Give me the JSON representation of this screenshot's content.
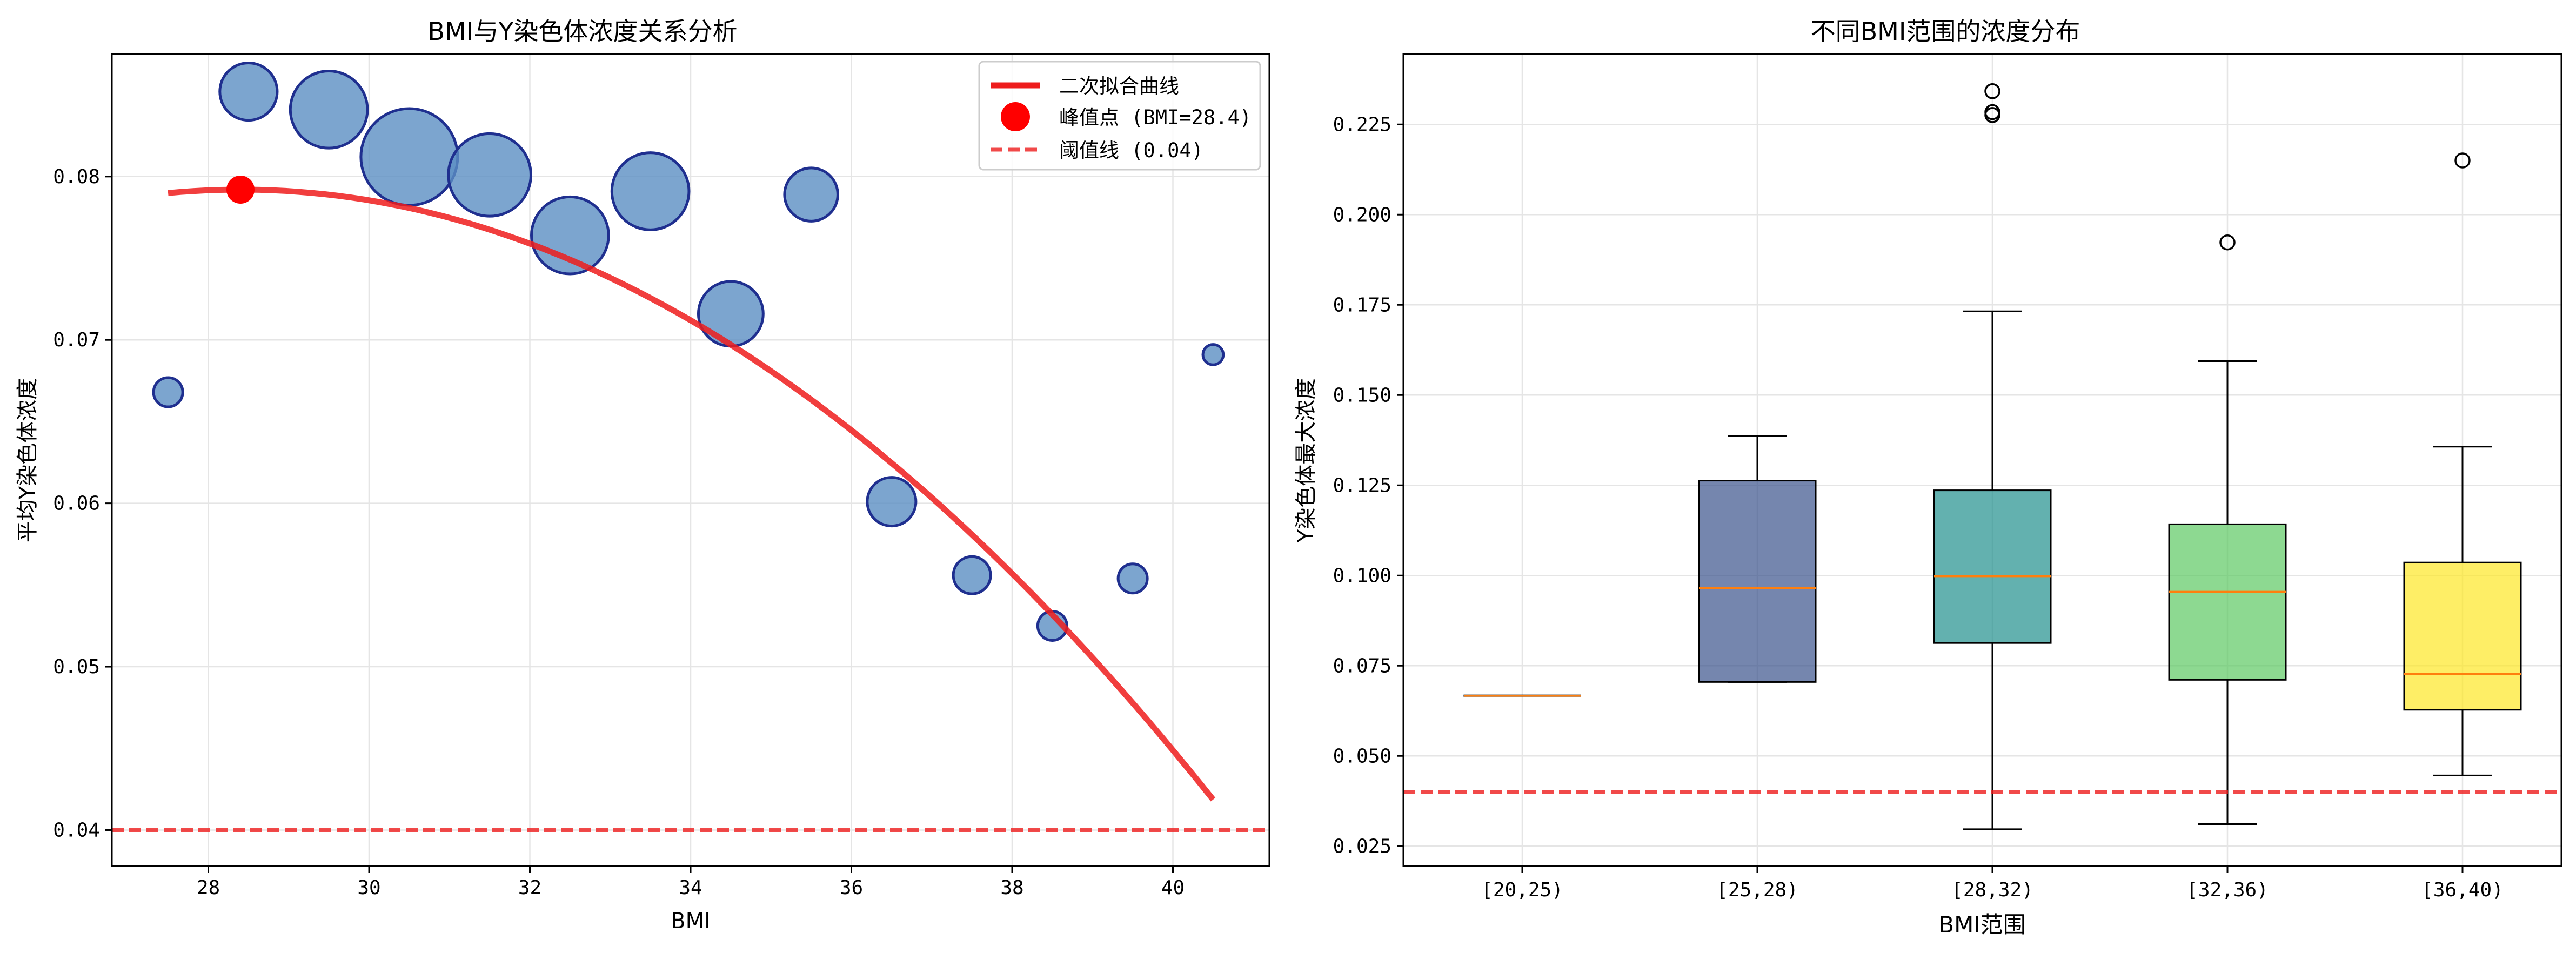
{
  "chart_data": [
    {
      "type": "scatter",
      "title": "BMI与Y染色体浓度关系分析",
      "xlabel": "BMI",
      "ylabel": "平均Y染色体浓度",
      "xlim": [
        26.8,
        41.2
      ],
      "ylim": [
        0.0378,
        0.0875
      ],
      "xticks": [
        28,
        30,
        32,
        34,
        36,
        38,
        40
      ],
      "yticks": [
        0.04,
        0.05,
        0.06,
        0.07,
        0.08
      ],
      "xtick_labels": [
        "28",
        "30",
        "32",
        "34",
        "36",
        "38",
        "40"
      ],
      "ytick_labels": [
        "0.04",
        "0.05",
        "0.06",
        "0.07",
        "0.08"
      ],
      "grid": true,
      "legend_position": "upper-right",
      "points": [
        {
          "x": 27.5,
          "y": 0.0668,
          "size": 1
        },
        {
          "x": 28.5,
          "y": 0.0852,
          "size": 6
        },
        {
          "x": 29.5,
          "y": 0.0841,
          "size": 12
        },
        {
          "x": 30.5,
          "y": 0.0812,
          "size": 20
        },
        {
          "x": 31.5,
          "y": 0.0801,
          "size": 14
        },
        {
          "x": 32.5,
          "y": 0.0764,
          "size": 12
        },
        {
          "x": 33.5,
          "y": 0.0791,
          "size": 12
        },
        {
          "x": 34.5,
          "y": 0.0716,
          "size": 8
        },
        {
          "x": 35.5,
          "y": 0.0789,
          "size": 5
        },
        {
          "x": 36.5,
          "y": 0.0601,
          "size": 4
        },
        {
          "x": 37.5,
          "y": 0.0556,
          "size": 2
        },
        {
          "x": 38.5,
          "y": 0.0525,
          "size": 1
        },
        {
          "x": 39.5,
          "y": 0.0554,
          "size": 1
        },
        {
          "x": 40.5,
          "y": 0.0691,
          "size": 0.3
        }
      ],
      "fit_curve": {
        "name": "二次拟合曲线",
        "x_range": [
          27.5,
          40.5
        ],
        "coefficients": {
          "a": -0.000255,
          "vertex_x": 28.4,
          "vertex_y": 0.0792
        }
      },
      "peak": {
        "name": "峰值点 (BMI=28.4)",
        "x": 28.4,
        "y": 0.0792
      },
      "threshold": {
        "name": "阈值线 (0.04)",
        "y": 0.04
      },
      "colors": {
        "points_fill": "#5b8fc3",
        "points_edge": "#1f2f8f",
        "fit": "#ee1c1c",
        "peak": "#ff0000",
        "threshold": "#ee1c1c"
      }
    },
    {
      "type": "box",
      "title": "不同BMI范围的浓度分布",
      "xlabel": "BMI范围",
      "ylabel": "Y染色体最大浓度",
      "ylim": [
        0.0195,
        0.2445
      ],
      "yticks": [
        0.025,
        0.05,
        0.075,
        0.1,
        0.125,
        0.15,
        0.175,
        0.2,
        0.225
      ],
      "ytick_labels": [
        "0.025",
        "0.050",
        "0.075",
        "0.100",
        "0.125",
        "0.150",
        "0.175",
        "0.200",
        "0.225"
      ],
      "grid": true,
      "categories": [
        "[20,25)",
        "[25,28)",
        "[28,32)",
        "[32,36)",
        "[36,40)"
      ],
      "boxes": [
        {
          "whisker_low": 0.0667,
          "q1": 0.0667,
          "median": 0.0667,
          "q3": 0.0667,
          "whisker_high": 0.0667,
          "outliers": [],
          "color": "#440154"
        },
        {
          "whisker_low": 0.0705,
          "q1": 0.0705,
          "median": 0.0965,
          "q3": 0.1263,
          "whisker_high": 0.1387,
          "outliers": [],
          "color": "#3b528b"
        },
        {
          "whisker_low": 0.0297,
          "q1": 0.0813,
          "median": 0.0998,
          "q3": 0.1236,
          "whisker_high": 0.1732,
          "outliers": [
            0.2276,
            0.2284,
            0.2342
          ],
          "color": "#21908d"
        },
        {
          "whisker_low": 0.0311,
          "q1": 0.0711,
          "median": 0.0955,
          "q3": 0.1142,
          "whisker_high": 0.1594,
          "outliers": [
            0.1923
          ],
          "color": "#5dc963"
        },
        {
          "whisker_low": 0.0446,
          "q1": 0.0628,
          "median": 0.0727,
          "q3": 0.1036,
          "whisker_high": 0.1357,
          "outliers": [
            0.215
          ],
          "color": "#fde725"
        }
      ],
      "threshold": {
        "y": 0.04
      },
      "colors": {
        "median": "#ff7f0e",
        "threshold": "#ee1c1c"
      }
    }
  ]
}
